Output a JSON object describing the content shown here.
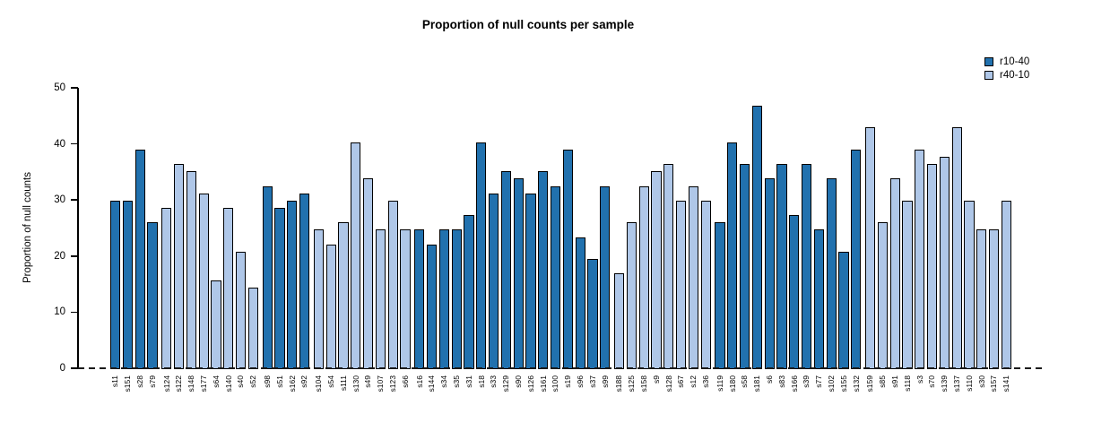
{
  "title": "Proportion of null counts per sample",
  "y_axis": {
    "label": "Proportion of null counts",
    "ticks": [
      0,
      10,
      20,
      30,
      40,
      50
    ]
  },
  "legend": [
    {
      "name": "r10-40",
      "color": "#2171AE"
    },
    {
      "name": "r40-10",
      "color": "#AFC7E8"
    }
  ],
  "colors": {
    "bar_border": "#000000",
    "axis": "#000000",
    "zero_line": "#1a1a1a"
  },
  "chart_data": {
    "type": "bar",
    "title": "Proportion of null counts per sample",
    "xlabel": "",
    "ylabel": "Proportion of null counts",
    "ylim": [
      0,
      50
    ],
    "yticks": [
      0,
      10,
      20,
      30,
      40,
      50
    ],
    "grid": false,
    "legend_position": "top-right",
    "zero_baseline_style": "dashed",
    "x_label_rotation": "vertical",
    "series_names": [
      "r10-40",
      "r40-10"
    ],
    "bars": [
      {
        "label": "s11",
        "value": 29.9,
        "series": "r10-40"
      },
      {
        "label": "s151",
        "value": 29.9,
        "series": "r10-40"
      },
      {
        "label": "s28",
        "value": 39.0,
        "series": "r10-40"
      },
      {
        "label": "s79",
        "value": 26.0,
        "series": "r10-40"
      },
      {
        "label": "s124",
        "value": 28.6,
        "series": "r40-10"
      },
      {
        "label": "s122",
        "value": 36.4,
        "series": "r40-10"
      },
      {
        "label": "s148",
        "value": 35.1,
        "series": "r40-10"
      },
      {
        "label": "s177",
        "value": 31.2,
        "series": "r40-10"
      },
      {
        "label": "s64",
        "value": 15.6,
        "series": "r40-10"
      },
      {
        "label": "s140",
        "value": 28.6,
        "series": "r40-10"
      },
      {
        "label": "s40",
        "value": 20.8,
        "series": "r40-10"
      },
      {
        "label": "s52",
        "value": 14.3,
        "series": "r40-10"
      },
      {
        "label": "s98",
        "value": 32.5,
        "series": "r10-40"
      },
      {
        "label": "s51",
        "value": 28.6,
        "series": "r10-40"
      },
      {
        "label": "s162",
        "value": 29.9,
        "series": "r10-40"
      },
      {
        "label": "s92",
        "value": 31.2,
        "series": "r10-40"
      },
      {
        "label": "s104",
        "value": 24.7,
        "series": "r40-10"
      },
      {
        "label": "s54",
        "value": 22.1,
        "series": "r40-10"
      },
      {
        "label": "s111",
        "value": 26.0,
        "series": "r40-10"
      },
      {
        "label": "s130",
        "value": 40.3,
        "series": "r40-10"
      },
      {
        "label": "s49",
        "value": 33.8,
        "series": "r40-10"
      },
      {
        "label": "s107",
        "value": 24.7,
        "series": "r40-10"
      },
      {
        "label": "s123",
        "value": 29.9,
        "series": "r40-10"
      },
      {
        "label": "s66",
        "value": 24.7,
        "series": "r40-10"
      },
      {
        "label": "s16",
        "value": 24.7,
        "series": "r10-40"
      },
      {
        "label": "s144",
        "value": 22.1,
        "series": "r10-40"
      },
      {
        "label": "s34",
        "value": 24.7,
        "series": "r10-40"
      },
      {
        "label": "s35",
        "value": 24.7,
        "series": "r10-40"
      },
      {
        "label": "s31",
        "value": 27.3,
        "series": "r10-40"
      },
      {
        "label": "s18",
        "value": 40.3,
        "series": "r10-40"
      },
      {
        "label": "s33",
        "value": 31.2,
        "series": "r10-40"
      },
      {
        "label": "s129",
        "value": 35.1,
        "series": "r10-40"
      },
      {
        "label": "s90",
        "value": 33.8,
        "series": "r10-40"
      },
      {
        "label": "s126",
        "value": 31.2,
        "series": "r10-40"
      },
      {
        "label": "s161",
        "value": 35.1,
        "series": "r10-40"
      },
      {
        "label": "s100",
        "value": 32.5,
        "series": "r10-40"
      },
      {
        "label": "s19",
        "value": 39.0,
        "series": "r10-40"
      },
      {
        "label": "s96",
        "value": 23.4,
        "series": "r10-40"
      },
      {
        "label": "s37",
        "value": 19.5,
        "series": "r10-40"
      },
      {
        "label": "s99",
        "value": 32.5,
        "series": "r10-40"
      },
      {
        "label": "s188",
        "value": 16.9,
        "series": "r40-10"
      },
      {
        "label": "s125",
        "value": 26.0,
        "series": "r40-10"
      },
      {
        "label": "s158",
        "value": 32.5,
        "series": "r40-10"
      },
      {
        "label": "s9",
        "value": 35.1,
        "series": "r40-10"
      },
      {
        "label": "s128",
        "value": 36.4,
        "series": "r40-10"
      },
      {
        "label": "s67",
        "value": 29.9,
        "series": "r40-10"
      },
      {
        "label": "s12",
        "value": 32.5,
        "series": "r40-10"
      },
      {
        "label": "s36",
        "value": 29.9,
        "series": "r40-10"
      },
      {
        "label": "s119",
        "value": 26.0,
        "series": "r10-40"
      },
      {
        "label": "s180",
        "value": 40.3,
        "series": "r10-40"
      },
      {
        "label": "s58",
        "value": 36.4,
        "series": "r10-40"
      },
      {
        "label": "s181",
        "value": 46.8,
        "series": "r10-40"
      },
      {
        "label": "s6",
        "value": 33.8,
        "series": "r10-40"
      },
      {
        "label": "s83",
        "value": 36.4,
        "series": "r10-40"
      },
      {
        "label": "s166",
        "value": 27.3,
        "series": "r10-40"
      },
      {
        "label": "s39",
        "value": 36.4,
        "series": "r10-40"
      },
      {
        "label": "s77",
        "value": 24.7,
        "series": "r10-40"
      },
      {
        "label": "s102",
        "value": 33.8,
        "series": "r10-40"
      },
      {
        "label": "s155",
        "value": 20.8,
        "series": "r10-40"
      },
      {
        "label": "s132",
        "value": 39.0,
        "series": "r10-40"
      },
      {
        "label": "s159",
        "value": 42.9,
        "series": "r40-10"
      },
      {
        "label": "s85",
        "value": 26.0,
        "series": "r40-10"
      },
      {
        "label": "s91",
        "value": 33.8,
        "series": "r40-10"
      },
      {
        "label": "s118",
        "value": 29.9,
        "series": "r40-10"
      },
      {
        "label": "s3",
        "value": 39.0,
        "series": "r40-10"
      },
      {
        "label": "s70",
        "value": 36.4,
        "series": "r40-10"
      },
      {
        "label": "s139",
        "value": 37.7,
        "series": "r40-10"
      },
      {
        "label": "s137",
        "value": 42.9,
        "series": "r40-10"
      },
      {
        "label": "s110",
        "value": 29.9,
        "series": "r40-10"
      },
      {
        "label": "s30",
        "value": 24.7,
        "series": "r40-10"
      },
      {
        "label": "s157",
        "value": 24.7,
        "series": "r40-10"
      },
      {
        "label": "s141",
        "value": 29.9,
        "series": "r40-10"
      }
    ]
  }
}
